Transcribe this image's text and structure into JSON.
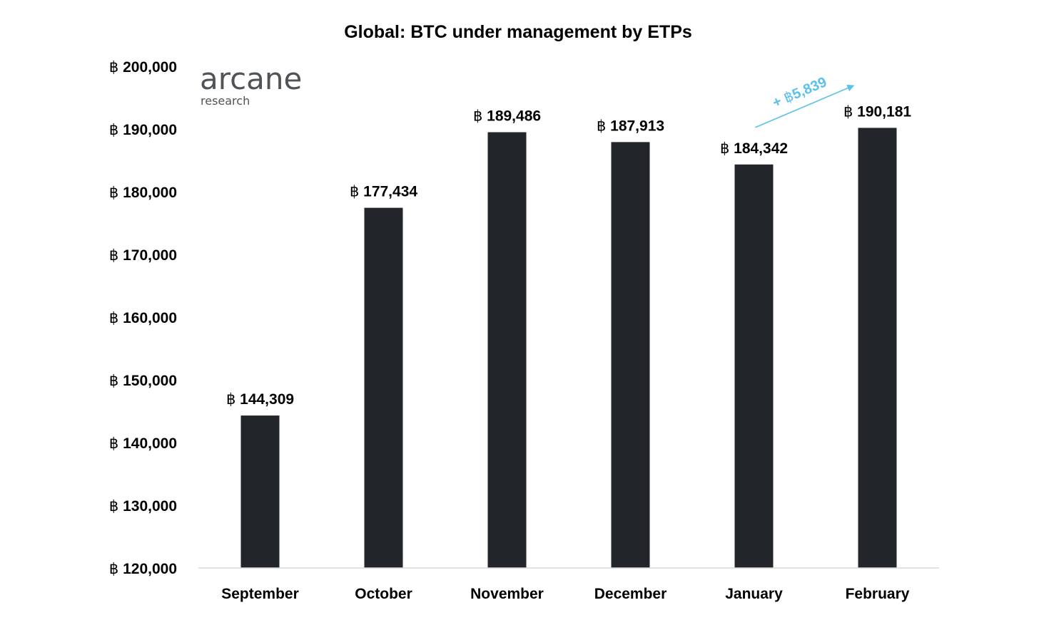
{
  "chart_data": {
    "type": "bar",
    "title": "Global: BTC under management by ETPs",
    "xlabel": "",
    "ylabel": "",
    "currency_symbol": "฿",
    "categories": [
      "September",
      "October",
      "November",
      "December",
      "January",
      "February"
    ],
    "values": [
      144309,
      177434,
      189486,
      187913,
      184342,
      190181
    ],
    "data_labels": [
      "฿ 144,309",
      "฿ 177,434",
      "฿ 189,486",
      "฿ 187,913",
      "฿ 184,342",
      "฿ 190,181"
    ],
    "ylim": [
      120000,
      200000
    ],
    "yticks": [
      120000,
      130000,
      140000,
      150000,
      160000,
      170000,
      180000,
      190000,
      200000
    ],
    "ytick_labels": [
      "฿ 120,000",
      "฿ 130,000",
      "฿ 140,000",
      "฿ 150,000",
      "฿ 160,000",
      "฿ 170,000",
      "฿ 180,000",
      "฿ 190,000",
      "฿ 200,000"
    ],
    "grid": false,
    "legend": "none",
    "bar_color": "#222529",
    "annotation": {
      "text": "+ ฿5,839",
      "from_category": "January",
      "to_category": "February",
      "color": "#5BC0EB"
    }
  },
  "logo": {
    "name": "arcane",
    "subtitle": "research"
  }
}
